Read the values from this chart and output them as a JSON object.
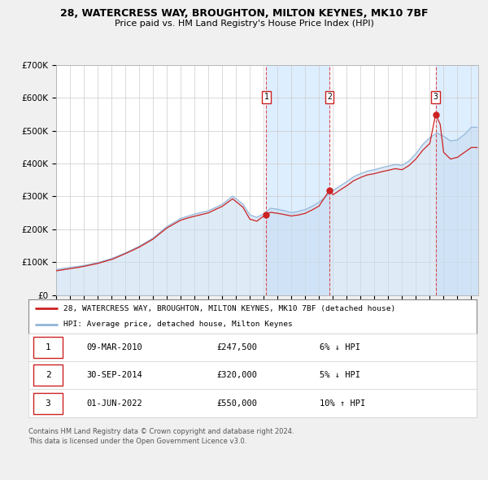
{
  "title_line1": "28, WATERCRESS WAY, BROUGHTON, MILTON KEYNES, MK10 7BF",
  "title_line2": "Price paid vs. HM Land Registry's House Price Index (HPI)",
  "ylim": [
    0,
    700000
  ],
  "yticks": [
    0,
    100000,
    200000,
    300000,
    400000,
    500000,
    600000,
    700000
  ],
  "ytick_labels": [
    "£0",
    "£100K",
    "£200K",
    "£300K",
    "£400K",
    "£500K",
    "£600K",
    "£700K"
  ],
  "xlim_start": 1995.0,
  "xlim_end": 2025.5,
  "hpi_color": "#90b4d8",
  "hpi_fill_color": "#c8ddf0",
  "price_color": "#cc2222",
  "vline_color": "#dd3333",
  "shading_color": "#ddeeff",
  "background_color": "#f0f0f0",
  "plot_bg_color": "#ffffff",
  "grid_color": "#cccccc",
  "legend_border_color": "#888888",
  "transaction_border_color": "#cc2222",
  "transactions": [
    {
      "num": 1,
      "date": "09-MAR-2010",
      "price": 247500,
      "price_str": "£247,500",
      "hpi_diff": "6% ↓ HPI",
      "x": 2010.19
    },
    {
      "num": 2,
      "date": "30-SEP-2014",
      "price": 320000,
      "price_str": "£320,000",
      "hpi_diff": "5% ↓ HPI",
      "x": 2014.75
    },
    {
      "num": 3,
      "date": "01-JUN-2022",
      "price": 550000,
      "price_str": "£550,000",
      "hpi_diff": "10% ↑ HPI",
      "x": 2022.42
    }
  ],
  "legend_line1": "28, WATERCRESS WAY, BROUGHTON, MILTON KEYNES, MK10 7BF (detached house)",
  "legend_line2": "HPI: Average price, detached house, Milton Keynes",
  "footnote_line1": "Contains HM Land Registry data © Crown copyright and database right 2024.",
  "footnote_line2": "This data is licensed under the Open Government Licence v3.0."
}
